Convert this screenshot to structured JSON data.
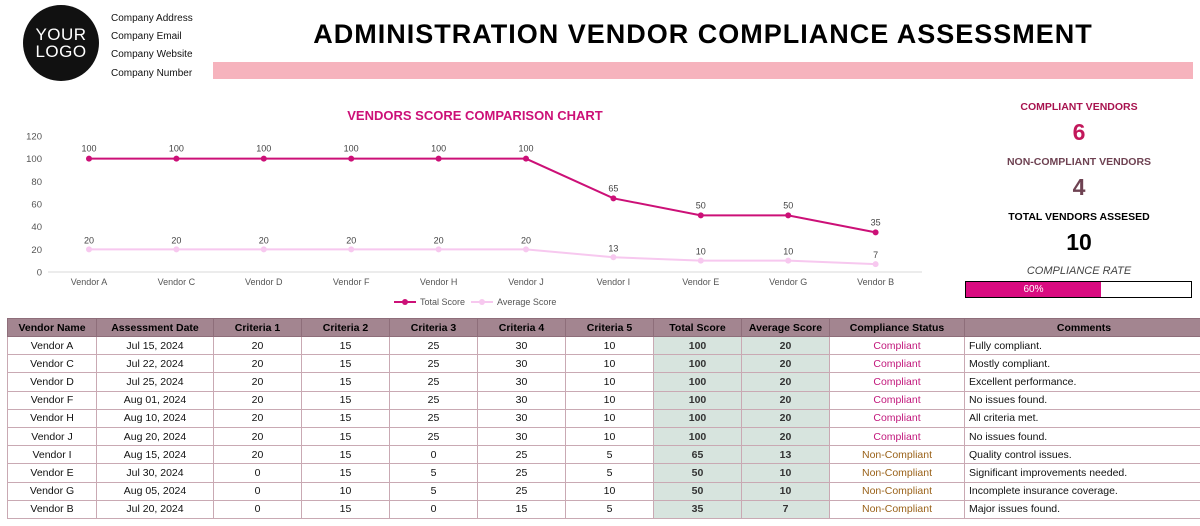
{
  "logo": {
    "line1": "YOUR",
    "line2": "LOGO"
  },
  "company": {
    "address": "Company Address",
    "email": "Company Email",
    "website": "Company Website",
    "number": "Company Number"
  },
  "title": "ADMINISTRATION VENDOR COMPLIANCE ASSESSMENT",
  "kpis": {
    "compliant_label": "COMPLIANT VENDORS",
    "compliant_value": "6",
    "noncompliant_label": "NON-COMPLIANT VENDORS",
    "noncompliant_value": "4",
    "total_label": "TOTAL VENDORS ASSESED",
    "total_value": "10",
    "rate_label": "COMPLIANCE RATE",
    "rate_text": "60%",
    "rate_fraction": 0.6
  },
  "chart_data": {
    "type": "line",
    "title": "VENDORS SCORE COMPARISON CHART",
    "categories": [
      "Vendor A",
      "Vendor C",
      "Vendor D",
      "Vendor F",
      "Vendor H",
      "Vendor J",
      "Vendor I",
      "Vendor E",
      "Vendor G",
      "Vendor B"
    ],
    "series": [
      {
        "name": "Total Score",
        "values": [
          100,
          100,
          100,
          100,
          100,
          100,
          65,
          50,
          50,
          35
        ],
        "color": "#cc1077"
      },
      {
        "name": "Average Score",
        "values": [
          20,
          20,
          20,
          20,
          20,
          20,
          13,
          10,
          10,
          7
        ],
        "color": "#f7c8ef"
      }
    ],
    "yticks": [
      0,
      20,
      40,
      60,
      80,
      100,
      120
    ],
    "ylim": [
      0,
      120
    ],
    "legend": "bottom"
  },
  "table": {
    "headers": [
      "Vendor Name",
      "Assessment Date",
      "Criteria 1",
      "Criteria 2",
      "Criteria 3",
      "Criteria 4",
      "Criteria 5",
      "Total Score",
      "Average Score",
      "Compliance Status",
      "Comments"
    ],
    "rows": [
      [
        "Vendor A",
        "Jul 15, 2024",
        "20",
        "15",
        "25",
        "30",
        "10",
        "100",
        "20",
        "Compliant",
        "Fully compliant."
      ],
      [
        "Vendor C",
        "Jul 22, 2024",
        "20",
        "15",
        "25",
        "30",
        "10",
        "100",
        "20",
        "Compliant",
        "Mostly compliant."
      ],
      [
        "Vendor D",
        "Jul 25, 2024",
        "20",
        "15",
        "25",
        "30",
        "10",
        "100",
        "20",
        "Compliant",
        "Excellent performance."
      ],
      [
        "Vendor F",
        "Aug 01, 2024",
        "20",
        "15",
        "25",
        "30",
        "10",
        "100",
        "20",
        "Compliant",
        "No issues found."
      ],
      [
        "Vendor H",
        "Aug 10, 2024",
        "20",
        "15",
        "25",
        "30",
        "10",
        "100",
        "20",
        "Compliant",
        "All criteria met."
      ],
      [
        "Vendor J",
        "Aug 20, 2024",
        "20",
        "15",
        "25",
        "30",
        "10",
        "100",
        "20",
        "Compliant",
        "No issues found."
      ],
      [
        "Vendor I",
        "Aug 15, 2024",
        "20",
        "15",
        "0",
        "25",
        "5",
        "65",
        "13",
        "Non-Compliant",
        "Quality control issues."
      ],
      [
        "Vendor E",
        "Jul 30, 2024",
        "0",
        "15",
        "5",
        "25",
        "5",
        "50",
        "10",
        "Non-Compliant",
        "Significant improvements needed."
      ],
      [
        "Vendor G",
        "Aug 05, 2024",
        "0",
        "10",
        "5",
        "25",
        "10",
        "50",
        "10",
        "Non-Compliant",
        "Incomplete insurance coverage."
      ],
      [
        "Vendor B",
        "Jul 20, 2024",
        "0",
        "15",
        "0",
        "15",
        "5",
        "35",
        "7",
        "Non-Compliant",
        "Major issues found."
      ]
    ]
  },
  "colors": {
    "accent": "#cc1077",
    "rate_fill": "#d90b80",
    "header_bg": "#a38590",
    "score_bg": "#d7e4de"
  }
}
